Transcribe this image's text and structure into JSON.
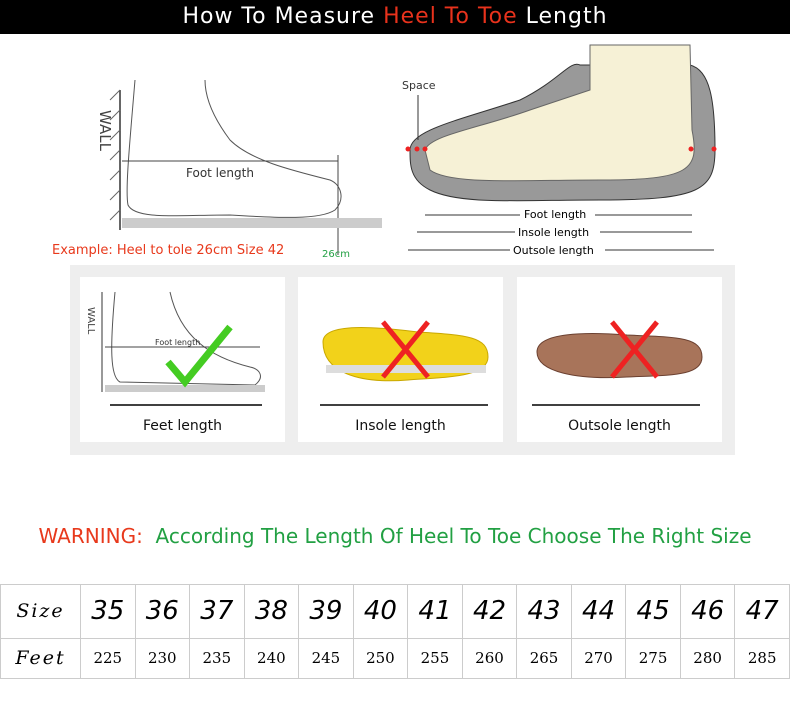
{
  "header": {
    "part1": "How To Measure ",
    "highlight": "Heel To Toe",
    "part2": " Length"
  },
  "left_diagram": {
    "wall": "WALL",
    "foot_length": "Foot length",
    "example": "Example: Heel to tole 26cm Size 42",
    "mark": "26cm"
  },
  "right_diagram": {
    "space": "Space",
    "foot_length": "Foot length",
    "insole_length": "Insole length",
    "outsole_length": "Outsole length"
  },
  "cards": [
    {
      "label": "Feet length",
      "wall": "WALL",
      "foot_length": "Foot length",
      "mark": "check-icon"
    },
    {
      "label": "Insole length",
      "mark": "cross-icon"
    },
    {
      "label": "Outsole length",
      "mark": "cross-icon"
    }
  ],
  "warning": {
    "prefix": "WARNING:",
    "text": "According The Length Of Heel To Toe Choose The Right Size"
  },
  "colors": {
    "red": "#e8321c",
    "green": "#22a043",
    "check": "#44cc22"
  },
  "size_table": {
    "row_labels": [
      "Size",
      "Feet"
    ],
    "sizes": [
      "35",
      "36",
      "37",
      "38",
      "39",
      "40",
      "41",
      "42",
      "43",
      "44",
      "45",
      "46",
      "47"
    ],
    "feet": [
      "225",
      "230",
      "235",
      "240",
      "245",
      "250",
      "255",
      "260",
      "265",
      "270",
      "275",
      "280",
      "285"
    ]
  }
}
